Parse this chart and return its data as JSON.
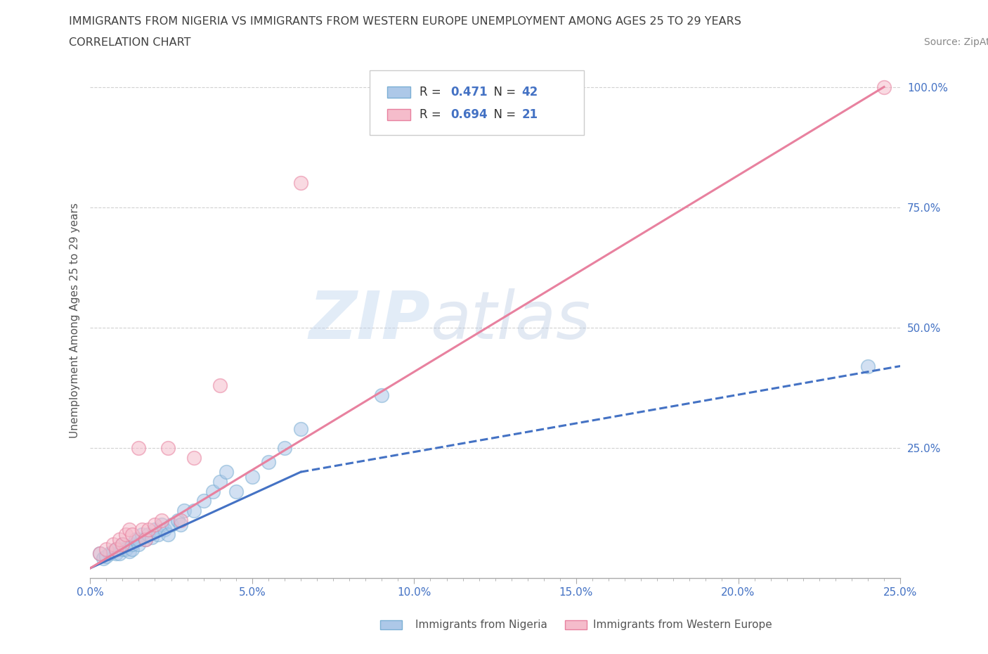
{
  "title_line1": "IMMIGRANTS FROM NIGERIA VS IMMIGRANTS FROM WESTERN EUROPE UNEMPLOYMENT AMONG AGES 25 TO 29 YEARS",
  "title_line2": "CORRELATION CHART",
  "source_text": "Source: ZipAtlas.com",
  "ylabel": "Unemployment Among Ages 25 to 29 years",
  "xlim": [
    0.0,
    0.25
  ],
  "ylim": [
    -0.02,
    1.05
  ],
  "xtick_labels": [
    "0.0%",
    "",
    "",
    "",
    "",
    "",
    "",
    "",
    "",
    "",
    "5.0%",
    "",
    "",
    "",
    "",
    "",
    "",
    "",
    "",
    "",
    "10.0%",
    "",
    "",
    "",
    "",
    "",
    "",
    "",
    "",
    "",
    "15.0%",
    "",
    "",
    "",
    "",
    "",
    "",
    "",
    "",
    "",
    "20.0%",
    "",
    "",
    "",
    "",
    "",
    "",
    "",
    "",
    "",
    "25.0%"
  ],
  "xtick_values": [
    0.0,
    0.005,
    0.01,
    0.015,
    0.02,
    0.025,
    0.03,
    0.035,
    0.04,
    0.045,
    0.05,
    0.055,
    0.06,
    0.065,
    0.07,
    0.075,
    0.08,
    0.085,
    0.09,
    0.095,
    0.1,
    0.105,
    0.11,
    0.115,
    0.12,
    0.125,
    0.13,
    0.135,
    0.14,
    0.145,
    0.15,
    0.155,
    0.16,
    0.165,
    0.17,
    0.175,
    0.18,
    0.185,
    0.19,
    0.195,
    0.2,
    0.205,
    0.21,
    0.215,
    0.22,
    0.225,
    0.23,
    0.235,
    0.24,
    0.245,
    0.25
  ],
  "xtick_major_labels": [
    "0.0%",
    "5.0%",
    "10.0%",
    "15.0%",
    "20.0%",
    "25.0%"
  ],
  "xtick_major_values": [
    0.0,
    0.05,
    0.1,
    0.15,
    0.2,
    0.25
  ],
  "ytick_labels": [
    "100.0%",
    "75.0%",
    "50.0%",
    "25.0%"
  ],
  "ytick_values": [
    1.0,
    0.75,
    0.5,
    0.25
  ],
  "nigeria_color": "#adc8e8",
  "nigeria_edge_color": "#7bafd4",
  "western_europe_color": "#f5bccb",
  "western_europe_edge_color": "#e8819f",
  "nigeria_r": "0.471",
  "nigeria_n": "42",
  "western_europe_r": "0.694",
  "western_europe_n": "21",
  "legend_label_nigeria": "Immigrants from Nigeria",
  "legend_label_western_europe": "Immigrants from Western Europe",
  "watermark_zip": "ZIP",
  "watermark_atlas": "atlas",
  "nigeria_scatter_x": [
    0.003,
    0.004,
    0.005,
    0.006,
    0.007,
    0.008,
    0.008,
    0.009,
    0.01,
    0.01,
    0.011,
    0.012,
    0.013,
    0.013,
    0.014,
    0.015,
    0.015,
    0.016,
    0.017,
    0.018,
    0.019,
    0.02,
    0.021,
    0.022,
    0.023,
    0.024,
    0.025,
    0.027,
    0.028,
    0.029,
    0.032,
    0.035,
    0.038,
    0.04,
    0.042,
    0.045,
    0.05,
    0.055,
    0.06,
    0.065,
    0.09,
    0.24
  ],
  "nigeria_scatter_y": [
    0.03,
    0.02,
    0.025,
    0.03,
    0.035,
    0.03,
    0.04,
    0.03,
    0.04,
    0.05,
    0.04,
    0.035,
    0.04,
    0.05,
    0.06,
    0.05,
    0.06,
    0.07,
    0.06,
    0.07,
    0.065,
    0.08,
    0.07,
    0.09,
    0.08,
    0.07,
    0.09,
    0.1,
    0.09,
    0.12,
    0.12,
    0.14,
    0.16,
    0.18,
    0.2,
    0.16,
    0.19,
    0.22,
    0.25,
    0.29,
    0.36,
    0.42
  ],
  "western_europe_scatter_x": [
    0.003,
    0.005,
    0.007,
    0.008,
    0.009,
    0.01,
    0.011,
    0.012,
    0.013,
    0.015,
    0.016,
    0.017,
    0.018,
    0.02,
    0.022,
    0.024,
    0.028,
    0.032,
    0.04,
    0.065,
    0.245
  ],
  "western_europe_scatter_y": [
    0.03,
    0.04,
    0.05,
    0.04,
    0.06,
    0.05,
    0.07,
    0.08,
    0.07,
    0.25,
    0.08,
    0.06,
    0.08,
    0.09,
    0.1,
    0.25,
    0.1,
    0.23,
    0.38,
    0.8,
    1.0
  ],
  "nigeria_solid_trend_x": [
    0.0,
    0.065
  ],
  "nigeria_solid_trend_y": [
    0.0,
    0.2
  ],
  "nigeria_dashed_trend_x": [
    0.065,
    0.25
  ],
  "nigeria_dashed_trend_y": [
    0.2,
    0.42
  ],
  "western_europe_trend_x": [
    0.0,
    0.245
  ],
  "western_europe_trend_y": [
    0.0,
    1.0
  ],
  "grid_color": "#cccccc",
  "background_color": "#ffffff",
  "title_color": "#404040",
  "axis_label_color": "#555555",
  "ytick_color": "#4472c4",
  "xtick_color": "#4472c4",
  "r_value_color": "#4472c4",
  "n_value_color": "#4472c4"
}
